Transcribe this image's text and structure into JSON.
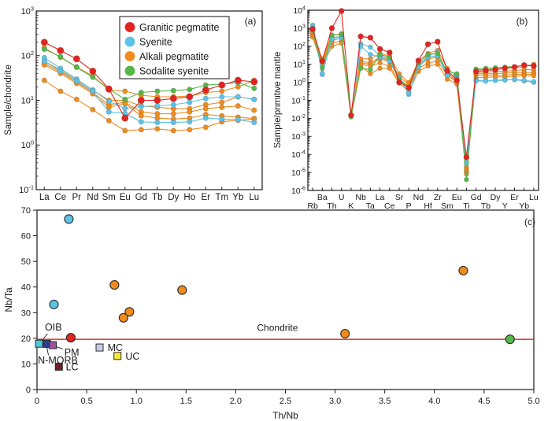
{
  "chart_data": [
    {
      "id": "a",
      "type": "line",
      "scale": "log",
      "panel_label": "(a)",
      "ylabel": "Sample/chondrite",
      "x_categories": [
        "La",
        "Ce",
        "Pr",
        "Nd",
        "Sm",
        "Eu",
        "Gd",
        "Tb",
        "Dy",
        "Ho",
        "Er",
        "Tm",
        "Yb",
        "Lu"
      ],
      "y_log_range": [
        -1,
        3
      ],
      "y_tick_exponents": [
        -1,
        0,
        1,
        2,
        3
      ],
      "legend": [
        {
          "label": "Granitic pegmatite",
          "color": "#e2231e"
        },
        {
          "label": "Syenite",
          "color": "#5bc3e8"
        },
        {
          "label": "Alkali pegmatite",
          "color": "#f08b1d"
        },
        {
          "label": "Sodalite syenite",
          "color": "#53b848"
        }
      ],
      "series": [
        {
          "name": "Alkali pegmatite 1",
          "color": "#f08b1d",
          "values": [
            150,
            92,
            56,
            35,
            17,
            16,
            13,
            12,
            12,
            12.5,
            15,
            16,
            20,
            28
          ]
        },
        {
          "name": "Alkali pegmatite 2",
          "color": "#f08b1d",
          "values": [
            75,
            48,
            29,
            17,
            10,
            10,
            7.5,
            7,
            6.5,
            6.5,
            8,
            9,
            12,
            10.5
          ]
        },
        {
          "name": "Alkali pegmatite 3",
          "color": "#f08b1d",
          "values": [
            68,
            43,
            26,
            15,
            8,
            9,
            5.5,
            5,
            5,
            5.5,
            6.5,
            7,
            7.5,
            6
          ]
        },
        {
          "name": "Alkali pegmatite 4",
          "color": "#f08b1d",
          "values": [
            62,
            40,
            24,
            14,
            7,
            8.5,
            4.5,
            4,
            3.8,
            4,
            4.8,
            4.5,
            4.2,
            3.9
          ]
        },
        {
          "name": "Alkali pegmatite 5",
          "color": "#f08b1d",
          "values": [
            28,
            16,
            10.5,
            6.2,
            3.5,
            2.1,
            2.2,
            2.3,
            2.1,
            2.2,
            2.5,
            3.3,
            3.6,
            3.8
          ]
        },
        {
          "name": "Syenite 1",
          "color": "#5bc3e8",
          "values": [
            90,
            52,
            30,
            17,
            9.5,
            6.6,
            7.3,
            7.5,
            8,
            9,
            11,
            12,
            12,
            10.5
          ]
        },
        {
          "name": "Syenite 2",
          "color": "#5bc3e8",
          "values": [
            75,
            45,
            27,
            16,
            5.5,
            5.1,
            3.3,
            3.2,
            3.2,
            3.3,
            4,
            3.8,
            3.7,
            3.2
          ]
        },
        {
          "name": "Sodalite syenite",
          "color": "#53b848",
          "values": [
            140,
            95,
            55,
            33,
            18,
            10.5,
            15,
            16,
            16.5,
            17.5,
            22,
            23,
            25,
            18.5
          ]
        },
        {
          "name": "Granitic pegmatite",
          "color": "#e2231e",
          "marker_r": 4.2,
          "values": [
            200,
            130,
            85,
            45,
            18,
            4,
            10,
            10,
            11,
            12,
            17,
            22,
            28,
            26
          ]
        }
      ]
    },
    {
      "id": "b",
      "type": "line",
      "scale": "log",
      "panel_label": "(b)",
      "ylabel": "Sample/primitive mantle",
      "x_categories": [
        "Rb",
        "Ba",
        "Th",
        "U",
        "K",
        "Nb",
        "Ta",
        "La",
        "Ce",
        "Sr",
        "P",
        "Nd",
        "Hf",
        "Zr",
        "Sm",
        "Eu",
        "Ti",
        "Gd",
        "Tb",
        "Dy",
        "Y",
        "Er",
        "Yb",
        "Lu"
      ],
      "x_label_rows": "alternate",
      "y_log_range": [
        -6,
        4
      ],
      "y_tick_exponents": [
        -6,
        -5,
        -4,
        -3,
        -2,
        -1,
        0,
        1,
        2,
        3,
        4
      ],
      "series": [
        {
          "name": "Alkali pegmatite 1",
          "color": "#f08b1d",
          "values": [
            350,
            20,
            400,
            500,
            0.016,
            20,
            20,
            40,
            30,
            3,
            1.0,
            15,
            40,
            60,
            6,
            2,
            2e-05,
            5,
            5,
            5.5,
            6,
            6.5,
            7,
            10
          ]
        },
        {
          "name": "Alkali pegmatite 2",
          "color": "#f08b1d",
          "values": [
            400,
            15,
            300,
            350,
            0.015,
            15,
            12,
            25,
            18,
            2,
            0.8,
            10,
            25,
            30,
            4,
            1.5,
            1.5e-05,
            3.5,
            3.5,
            4,
            4,
            4.5,
            5,
            5
          ]
        },
        {
          "name": "Alkali pegmatite 3",
          "color": "#f08b1d",
          "values": [
            500,
            12,
            200,
            300,
            0.015,
            12,
            10,
            20,
            14,
            1.5,
            0.6,
            8,
            20,
            25,
            3,
            1.2,
            1.2e-05,
            3,
            3,
            3,
            3.2,
            3.5,
            3.5,
            3.5
          ]
        },
        {
          "name": "Alkali pegmatite 4",
          "color": "#f08b1d",
          "values": [
            600,
            10,
            150,
            200,
            0.014,
            10,
            8,
            12,
            8,
            1.2,
            0.5,
            6,
            12,
            15,
            2.5,
            1.0,
            1e-05,
            2.5,
            2.5,
            2.5,
            2.5,
            2.8,
            2.8,
            2.8
          ]
        },
        {
          "name": "Alkali pegmatite 5",
          "color": "#f08b1d",
          "values": [
            320,
            8,
            100,
            150,
            0.013,
            8,
            3,
            6,
            6,
            0.9,
            0.3,
            4,
            8,
            10,
            1.5,
            0.8,
            8e-06,
            1.8,
            1.9,
            2,
            2,
            2.2,
            2.3,
            2.3
          ]
        },
        {
          "name": "Syenite 1",
          "color": "#5bc3e8",
          "values": [
            1500,
            2.7,
            300,
            350,
            0.015,
            140,
            90,
            30,
            20,
            2.0,
            0.21,
            8,
            30,
            45,
            2.8,
            2.2,
            4e-05,
            1.3,
            1.25,
            1.3,
            1.4,
            1.4,
            1.2,
            1.0
          ]
        },
        {
          "name": "Syenite 2",
          "color": "#5bc3e8",
          "values": [
            1200,
            3.2,
            250,
            280,
            0.014,
            100,
            35,
            25,
            15,
            1.8,
            0.25,
            7,
            25,
            30,
            2.4,
            2.6,
            3e-05,
            1.2,
            1.15,
            1.25,
            1.3,
            1.5,
            1.3,
            1.1
          ]
        },
        {
          "name": "Sodalite syenite",
          "color": "#53b848",
          "values": [
            800,
            6,
            420,
            450,
            0.012,
            6,
            5,
            35,
            25,
            1.5,
            0.5,
            12,
            35,
            40,
            4,
            3,
            4e-06,
            5.5,
            6,
            6.5,
            7,
            7.5,
            8.5,
            9
          ]
        },
        {
          "name": "Granitic pegmatite",
          "color": "#e2231e",
          "marker_r": 3.5,
          "values": [
            900,
            15,
            1000,
            9000,
            0.015,
            350,
            300,
            70,
            45,
            1.0,
            0.5,
            16,
            130,
            180,
            4.5,
            1.3,
            7e-05,
            4,
            4.5,
            5,
            6,
            7,
            9,
            8
          ]
        }
      ]
    },
    {
      "id": "c",
      "type": "scatter",
      "panel_label": "(c)",
      "xlabel": "Th/Nb",
      "ylabel": "Nb/Ta",
      "xlim": [
        0,
        5.0
      ],
      "ylim": [
        0,
        70
      ],
      "x_ticks": [
        0,
        0.5,
        1.0,
        1.5,
        2.0,
        2.5,
        3.0,
        3.5,
        4.0,
        4.5,
        5.0
      ],
      "x_tick_labels": [
        "0",
        "0.5",
        "1.0",
        "1.5",
        "2.0",
        "2.5",
        "3.0",
        "3.5",
        "4.0",
        "4.5",
        "5.0"
      ],
      "y_ticks": [
        0,
        10,
        20,
        30,
        40,
        50,
        60,
        70
      ],
      "chondrite_line": {
        "y": 19.6,
        "label": "Chondrite",
        "color": "#d8261f",
        "label_x": 2.42,
        "label_y": 22.8
      },
      "groups": [
        {
          "name": "Alkali pegmatite",
          "color": "#f08b1d",
          "points": [
            [
              0.78,
              40.8
            ],
            [
              0.87,
              28.0
            ],
            [
              0.93,
              30.3
            ],
            [
              1.46,
              38.8
            ],
            [
              3.1,
              21.8
            ],
            [
              4.29,
              46.4
            ]
          ]
        },
        {
          "name": "Sodalite syenite",
          "color": "#53b848",
          "points": [
            [
              4.76,
              19.6
            ]
          ]
        },
        {
          "name": "Syenite",
          "color": "#5bc3e8",
          "points": [
            [
              0.32,
              66.5
            ],
            [
              0.17,
              33.2
            ]
          ]
        },
        {
          "name": "Granitic pegmatite",
          "color": "#e2231e",
          "points": [
            [
              0.34,
              20.2
            ]
          ]
        }
      ],
      "references": [
        {
          "label": "OIB",
          "color": "#4cc8d9",
          "x": 0.02,
          "y": 17.9,
          "label_x": 0.165,
          "label_y": 24.2,
          "anchor": "middle",
          "leader": [
            [
              0.105,
              21.8
            ],
            [
              0.055,
              19.3
            ]
          ]
        },
        {
          "label": "N-MORB",
          "color": "#2b3d8f",
          "x": 0.1,
          "y": 17.8,
          "label_x": 0.21,
          "label_y": 11.4,
          "anchor": "middle",
          "leader": [
            [
              0.115,
              13.4
            ],
            [
              0.1,
              16.4
            ]
          ]
        },
        {
          "label": "PM",
          "color": "#a0519f",
          "x": 0.16,
          "y": 17.3,
          "label_x": 0.35,
          "label_y": 14.4,
          "anchor": "middle",
          "leader": [
            [
              0.26,
              15.8
            ],
            [
              0.175,
              17.0
            ]
          ]
        },
        {
          "label": "LC",
          "color": "#6d2025",
          "x": 0.22,
          "y": 8.9,
          "label_x": 0.29,
          "label_y": 8.7,
          "anchor": "start"
        },
        {
          "label": "MC",
          "color": "#c9cbe6",
          "x": 0.63,
          "y": 16.4,
          "label_x": 0.71,
          "label_y": 16.2,
          "anchor": "start"
        },
        {
          "label": "UC",
          "color": "#f6e93d",
          "x": 0.81,
          "y": 13.1,
          "label_x": 0.89,
          "label_y": 12.9,
          "anchor": "start"
        }
      ]
    }
  ],
  "colors": {
    "axis": "#1a1a1a",
    "granitic_pegmatite": "#e2231e",
    "syenite": "#5bc3e8",
    "alkali_pegmatite": "#f08b1d",
    "sodalite_syenite": "#53b848"
  }
}
